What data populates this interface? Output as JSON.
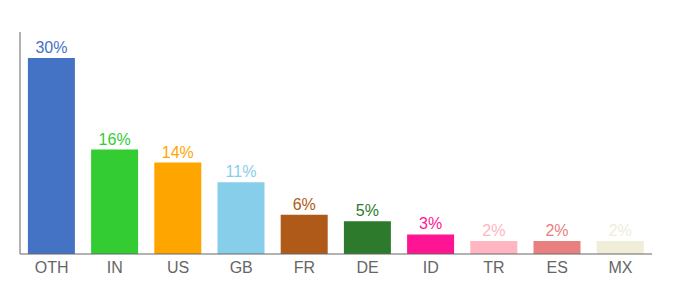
{
  "chart_data": {
    "type": "bar",
    "categories": [
      "OTH",
      "IN",
      "US",
      "GB",
      "FR",
      "DE",
      "ID",
      "TR",
      "ES",
      "MX"
    ],
    "values": [
      30,
      16,
      14,
      11,
      6,
      5,
      3,
      2,
      2,
      2
    ],
    "value_labels": [
      "30%",
      "16%",
      "14%",
      "11%",
      "6%",
      "5%",
      "3%",
      "2%",
      "2%",
      "2%"
    ],
    "data_labels": true,
    "colors": [
      "#4472C4",
      "#33CC33",
      "#FFA500",
      "#87CEEB",
      "#B05A1A",
      "#2D7A2D",
      "#FF1493",
      "#FFB6C1",
      "#E88080",
      "#F0EDD8"
    ],
    "ylim": [
      0,
      34
    ],
    "grid": false,
    "tick_labels": "x"
  }
}
